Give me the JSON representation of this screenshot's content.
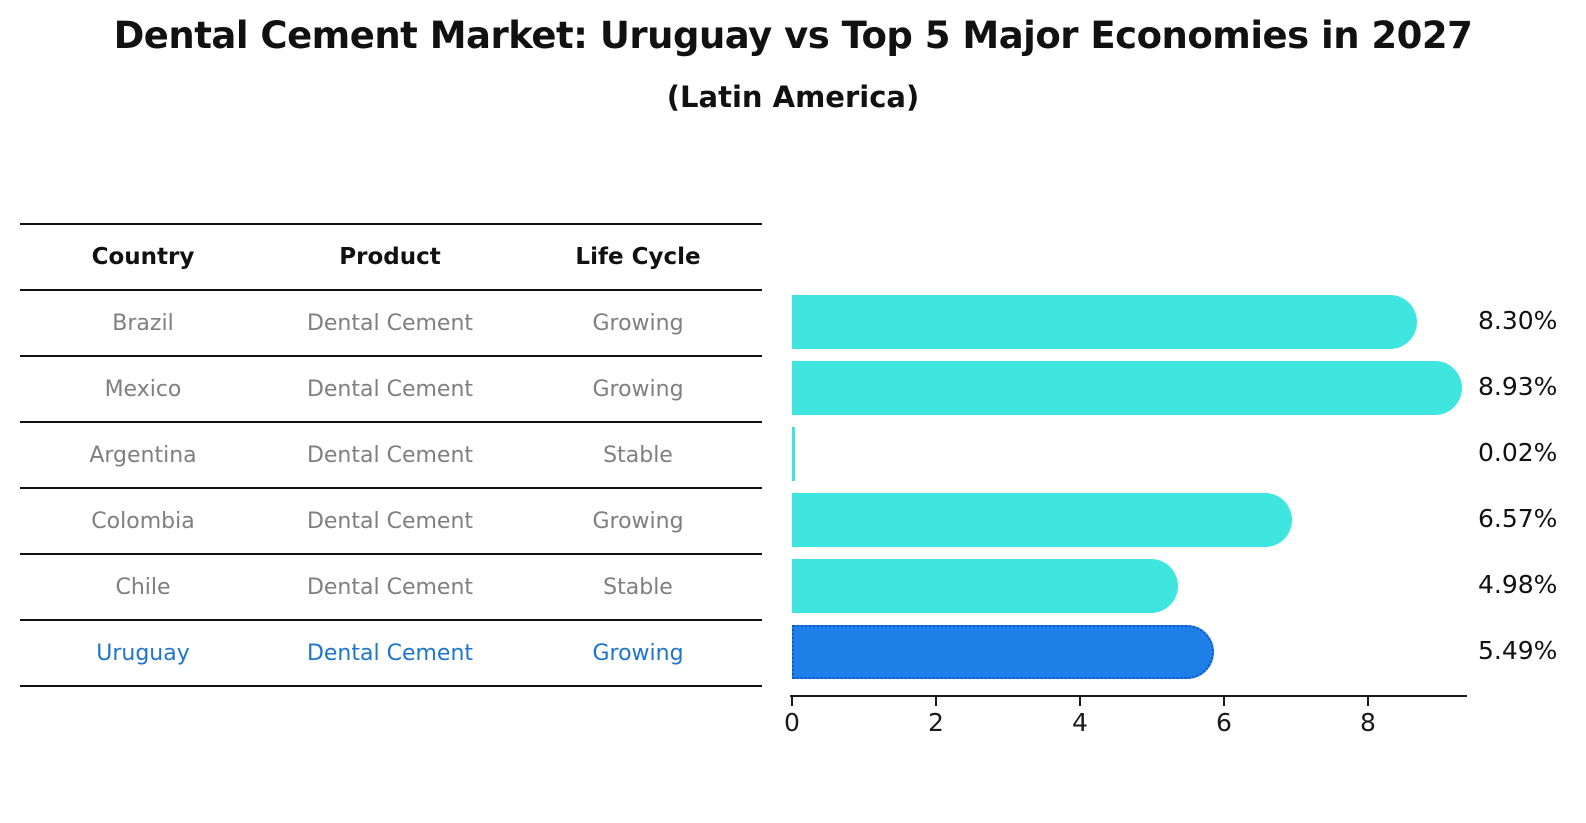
{
  "title": "Dental Cement Market: Uruguay vs Top 5 Major Economies in 2027",
  "subtitle": "(Latin America)",
  "table": {
    "headers": [
      "Country",
      "Product",
      "Life Cycle"
    ],
    "rows": [
      {
        "country": "Brazil",
        "product": "Dental Cement",
        "life_cycle": "Growing",
        "highlight": false
      },
      {
        "country": "Mexico",
        "product": "Dental Cement",
        "life_cycle": "Growing",
        "highlight": false
      },
      {
        "country": "Argentina",
        "product": "Dental Cement",
        "life_cycle": "Stable",
        "highlight": false
      },
      {
        "country": "Colombia",
        "product": "Dental Cement",
        "life_cycle": "Growing",
        "highlight": false
      },
      {
        "country": "Chile",
        "product": "Dental Cement",
        "life_cycle": "Stable",
        "highlight": false
      },
      {
        "country": "Uruguay",
        "product": "Dental Cement",
        "life_cycle": "Growing",
        "highlight": true
      }
    ]
  },
  "chart_data": {
    "type": "bar",
    "orientation": "horizontal",
    "title": "Dental Cement Market: Uruguay vs Top 5 Major Economies in 2027",
    "subtitle": "(Latin America)",
    "categories": [
      "Brazil",
      "Mexico",
      "Argentina",
      "Colombia",
      "Chile",
      "Uruguay"
    ],
    "values": [
      8.3,
      8.93,
      0.02,
      6.57,
      4.98,
      5.49
    ],
    "value_labels": [
      "8.30%",
      "8.93%",
      "0.02%",
      "6.57%",
      "4.98%",
      "5.49%"
    ],
    "highlight_index": 5,
    "x_ticks": [
      0,
      2,
      4,
      6,
      8
    ],
    "xlim": [
      0,
      9.4
    ],
    "grid": false,
    "legend": false,
    "colors": {
      "bar_default": "#3fe6df",
      "bar_highlight": "#1e7fe8",
      "bar_highlight_border": "#1058c8",
      "highlight_text": "#1d76cc",
      "table_text": "#7f7f7f",
      "axis": "#1a1a1a"
    }
  }
}
